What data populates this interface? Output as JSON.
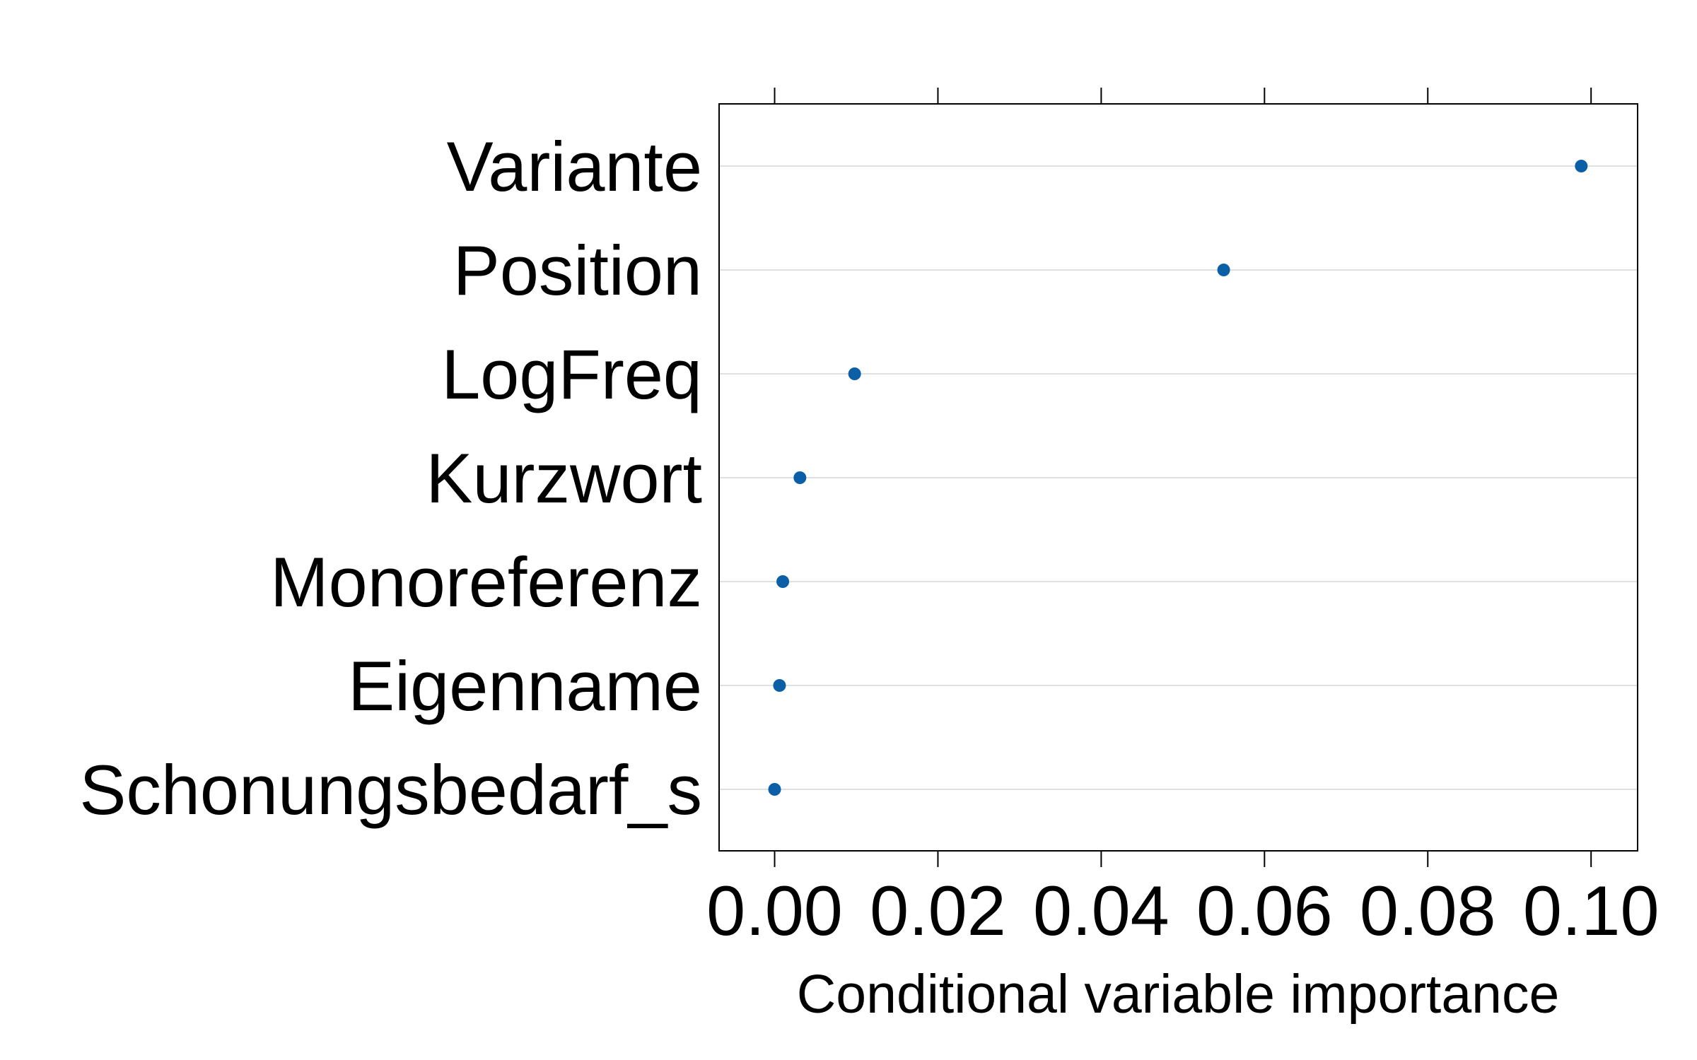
{
  "chart_data": {
    "type": "scatter",
    "title": "",
    "xlabel": "Conditional variable importance",
    "ylabel": "",
    "categories": [
      "Variante",
      "Position",
      "LogFreq",
      "Kurzwort",
      "Monoreferenz",
      "Eigenname",
      "Schonungsbedarf_s"
    ],
    "values": [
      0.0988,
      0.055,
      0.0098,
      0.0031,
      0.001,
      0.0006,
      0.0
    ],
    "xlim": [
      -0.0068,
      0.1057
    ],
    "xticks": [
      0.0,
      0.02,
      0.04,
      0.06,
      0.08,
      0.1
    ],
    "xtick_labels": [
      "0.00",
      "0.02",
      "0.04",
      "0.06",
      "0.08",
      "0.10"
    ],
    "grid": "horizontal",
    "legend": "none",
    "point_color": "#0A5FA6",
    "grid_color": "#E0E0E0"
  }
}
